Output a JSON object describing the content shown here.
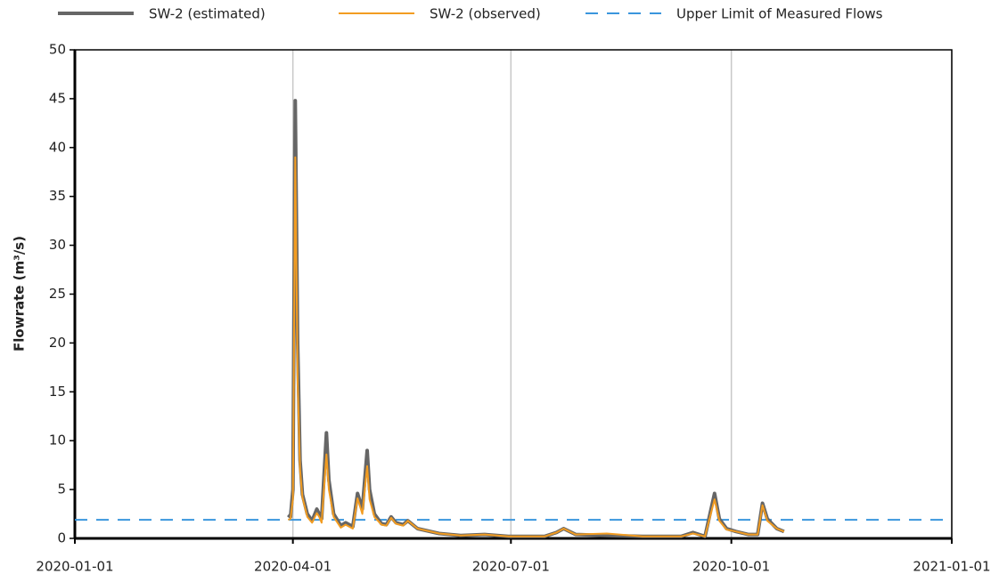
{
  "chart_data": {
    "type": "line",
    "y_label": "Flowrate (m³/s)",
    "x": [
      "2020-03-30",
      "2020-03-31",
      "2020-04-01",
      "2020-04-02",
      "2020-04-03",
      "2020-04-04",
      "2020-04-05",
      "2020-04-07",
      "2020-04-09",
      "2020-04-11",
      "2020-04-12",
      "2020-04-13",
      "2020-04-15",
      "2020-04-16",
      "2020-04-18",
      "2020-04-21",
      "2020-04-23",
      "2020-04-26",
      "2020-04-28",
      "2020-04-30",
      "2020-05-02",
      "2020-05-03",
      "2020-05-05",
      "2020-05-08",
      "2020-05-10",
      "2020-05-12",
      "2020-05-14",
      "2020-05-17",
      "2020-05-19",
      "2020-05-23",
      "2020-06-01",
      "2020-06-10",
      "2020-06-20",
      "2020-06-30",
      "2020-07-15",
      "2020-07-20",
      "2020-07-23",
      "2020-07-28",
      "2020-08-10",
      "2020-08-25",
      "2020-09-10",
      "2020-09-15",
      "2020-09-20",
      "2020-09-24",
      "2020-09-26",
      "2020-09-29",
      "2020-10-03",
      "2020-10-08",
      "2020-10-12",
      "2020-10-14",
      "2020-10-16",
      "2020-10-20",
      "2020-10-23"
    ],
    "series": [
      {
        "name": "SW-2 (estimated)",
        "color": "#666666",
        "width": 4,
        "values": [
          2.4,
          2.2,
          5.0,
          44.8,
          20,
          8,
          4.5,
          2.5,
          1.8,
          3.0,
          2.5,
          2.0,
          10.8,
          6,
          2.5,
          1.3,
          1.6,
          1.2,
          4.6,
          3.0,
          9.0,
          5,
          2.5,
          1.5,
          1.4,
          2.2,
          1.6,
          1.4,
          1.8,
          1.0,
          0.5,
          0.3,
          0.4,
          0.2,
          0.2,
          0.6,
          1.0,
          0.4,
          0.3,
          0.2,
          0.2,
          0.6,
          0.2,
          4.6,
          2.0,
          1.0,
          0.7,
          0.4,
          0.4,
          3.6,
          2.0,
          1.0,
          0.7
        ]
      },
      {
        "name": "SW-2 (observed)",
        "color": "#f29c21",
        "width": 2,
        "values": [
          1.9,
          2.0,
          4.0,
          39.0,
          16,
          7,
          4.2,
          2.2,
          1.6,
          2.6,
          2.2,
          1.6,
          8.6,
          5,
          2.2,
          1.1,
          1.4,
          1.0,
          4.1,
          2.5,
          7.4,
          4,
          2.2,
          1.4,
          1.3,
          2.1,
          1.5,
          1.3,
          1.8,
          1.0,
          0.5,
          0.3,
          0.4,
          0.2,
          0.2,
          0.6,
          1.0,
          0.4,
          0.5,
          0.2,
          0.2,
          0.5,
          0.2,
          4.0,
          1.8,
          0.9,
          0.7,
          0.4,
          0.4,
          3.4,
          1.8,
          1.0,
          0.7
        ]
      }
    ],
    "reference_lines": [
      {
        "name": "Upper Limit of Measured Flows",
        "value": 1.9,
        "color": "#3a96dd"
      }
    ],
    "xlim": [
      "2020-01-01",
      "2021-01-01"
    ],
    "xticks": [
      "2020-01-01",
      "2020-04-01",
      "2020-07-01",
      "2020-10-01",
      "2021-01-01"
    ],
    "ylim": [
      0,
      50
    ],
    "yticks": [
      0,
      5,
      10,
      15,
      20,
      25,
      30,
      35,
      40,
      45,
      50
    ],
    "grid": "x",
    "legend": "top"
  }
}
